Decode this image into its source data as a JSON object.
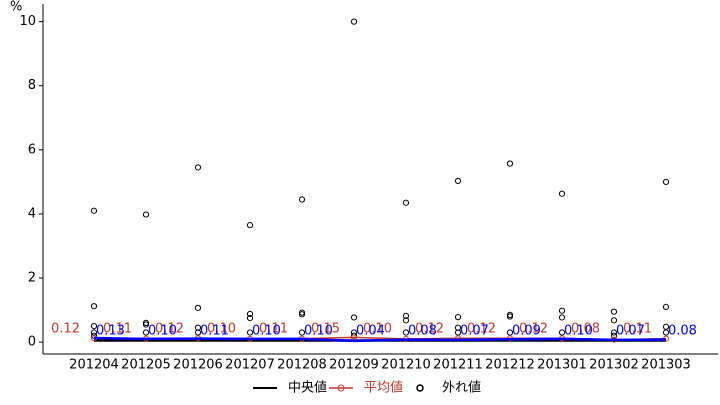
{
  "chart_data": {
    "type": "box",
    "y_label": "%",
    "categories": [
      "201204",
      "201205",
      "201206",
      "201207",
      "201208",
      "201209",
      "201210",
      "201211",
      "201212",
      "201301",
      "201302",
      "201303"
    ],
    "series": [
      {
        "name": "中央値",
        "color": "#000000",
        "values": [
          0.05,
          0.05,
          0.05,
          0.05,
          0.05,
          0.05,
          0.05,
          0.05,
          0.05,
          0.05,
          0.05,
          0.05
        ]
      },
      {
        "name": "平均値",
        "color": "#c0392b",
        "values": [
          0.12,
          0.11,
          0.12,
          0.1,
          0.11,
          0.15,
          0.1,
          0.12,
          0.12,
          0.12,
          0.08,
          0.11
        ],
        "value_labels": [
          "0.12",
          "0.11",
          "0.12",
          "0.10",
          "0.11",
          "0.15",
          "0.10",
          "0.12",
          "0.12",
          "0.12",
          "0.08",
          "0.11"
        ]
      },
      {
        "color": "#0000ff",
        "values": [
          0.13,
          0.1,
          0.11,
          0.1,
          0.1,
          0.04,
          0.08,
          0.07,
          0.09,
          0.1,
          0.07,
          0.08
        ],
        "value_labels": [
          "0.13",
          "0.10",
          "0.11",
          "0.10",
          "0.10",
          "0.04",
          "0.08",
          "0.07",
          "0.09",
          "0.10",
          "0.07",
          "0.08"
        ]
      }
    ],
    "outliers": {
      "name": "外れ値",
      "color": "#000000",
      "values": [
        [
          4.1,
          1.12,
          0.5,
          0.3,
          0.2
        ],
        [
          3.98,
          0.6,
          0.55,
          0.3
        ],
        [
          5.45,
          1.07,
          0.45,
          0.3
        ],
        [
          3.65,
          0.88,
          0.75,
          0.3
        ],
        [
          4.45,
          0.92,
          0.87,
          0.3
        ],
        [
          10.0,
          0.77,
          0.3,
          0.2
        ],
        [
          4.35,
          0.82,
          0.68,
          0.3
        ],
        [
          5.03,
          0.78,
          0.45,
          0.3
        ],
        [
          5.57,
          0.85,
          0.8,
          0.3
        ],
        [
          4.63,
          0.98,
          0.77,
          0.3
        ],
        [
          0.95,
          0.68,
          0.3,
          0.2
        ],
        [
          5.0,
          1.1,
          0.48,
          0.3
        ]
      ]
    },
    "ylim": [
      -0.37,
      10.55
    ],
    "yticks": [
      0,
      2,
      4,
      6,
      8,
      10
    ]
  }
}
